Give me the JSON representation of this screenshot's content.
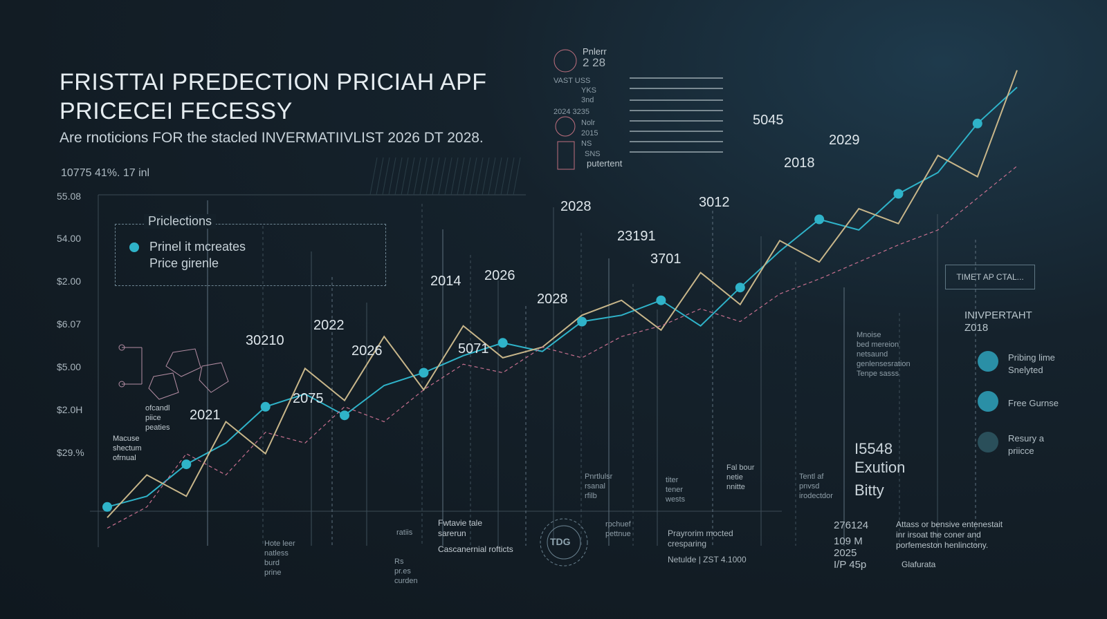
{
  "header": {
    "title_line1": "FRISTTAI PREDECTION PRICIAH APF",
    "title_line2": "PRICECEI FECESSY",
    "subtitle": "Are rnoticions FOR the stacled INVERMATIIVLIST 2026 DT 2028.",
    "stats": "10775  41%. 17 inl"
  },
  "colors": {
    "accent_cyan": "#2fb3c9",
    "accent_tan": "#c8b68a",
    "accent_pink": "#c8708f",
    "grid": "#4a5a64",
    "background": "#15222c"
  },
  "legend": {
    "title": "Priclections",
    "item1_line1": "Prinel it mcreates",
    "item1_line2": "Price girenle"
  },
  "top_legend": {
    "label1": "Pnlerr",
    "label2": "2 28",
    "row1": "VAST  USS",
    "row2": "YKS",
    "row3": "3nd",
    "row4": "2024  3235",
    "row5": "Nolr",
    "row6": "2015",
    "row7": "NS",
    "row8": "SNS",
    "footer": "putertent"
  },
  "sidebar": {
    "title_line1": "INIVPERTAHT",
    "title_line2": "Z018",
    "items": [
      {
        "line1": "Pribing lime",
        "line2": "Snelyted",
        "color": "#2a8fa6"
      },
      {
        "line1": "Free Gurnse",
        "line2": "",
        "color": "#2a8fa6"
      },
      {
        "line1": "Resury a",
        "line2": "priicce",
        "color": "#2a4f5a"
      }
    ],
    "button": "TIMET AP CTAL..."
  },
  "summary": {
    "line1": "I5548",
    "line2": "Exution",
    "line3": "Bitty"
  },
  "bottom": {
    "col1": "276124",
    "col2": "109 M",
    "col3": "2025",
    "col4": "I/P 45p",
    "note_line1": "Attass or bensive entenestait",
    "note_line2": "inr irsoat the coner and",
    "note_line3": "porfemeston henlinctony.",
    "note_tag": "Glafurata",
    "center_line1": "Prayrorim mocted",
    "center_line2": "cresparing",
    "center_line3": "Netulde  |  ZST 4.1000",
    "mid_line1": "rpchuef",
    "mid_line2": "pettnue",
    "legend_line1": "Fwtavie tale",
    "legend_line2": "sarerun",
    "legend_line3": "Cascanernial rofticts",
    "ratios": "ratiis",
    "emblem": "TDG"
  },
  "annotations": {
    "left_block": [
      "Macuse",
      "shectum",
      "ofrnual"
    ],
    "left_mid": [
      "ofcandl",
      "piice",
      "peaties"
    ],
    "low1": [
      "Hote  leer",
      "natless",
      "burd",
      "prine"
    ],
    "low2": [
      "Rs",
      "pr.es",
      "curden"
    ],
    "low3": [
      "Pnrtlulsr",
      "rsanal",
      "rfilb"
    ],
    "low4": [
      "titer",
      "tener",
      "wests"
    ],
    "low5": [
      "Fal bour",
      "netie",
      "nnitte"
    ],
    "low6": [
      "Tentl af",
      "pnvsd",
      "irodectdor"
    ],
    "mid_right": [
      "Mnoise",
      "bed mereion",
      "netsaund",
      "genlensesration",
      "Tenpe sasss"
    ]
  },
  "chart_data": {
    "type": "line",
    "title": "FRISTTAI PREDECTION PRICIAH APF PRICECEI FECESSY",
    "ylabel": "",
    "y_tick_labels": [
      "55.08",
      "54.00",
      "$2.00",
      "$6.07",
      "$5.00",
      "$2.0H",
      "$29.%"
    ],
    "year_labels": [
      "2021",
      "30210",
      "2075",
      "2022",
      "2026",
      "2014",
      "5071",
      "2026",
      "2028",
      "2028",
      "23191",
      "3701",
      "3012",
      "5045",
      "2018",
      "2029"
    ],
    "series": [
      {
        "color": "#2fb3c9",
        "values": [
          0.15,
          0.2,
          0.35,
          0.45,
          0.62,
          0.68,
          0.58,
          0.72,
          0.78,
          0.86,
          0.92,
          0.88,
          1.02,
          1.05,
          1.12,
          1.0,
          1.18,
          1.35,
          1.5,
          1.45,
          1.62,
          1.72,
          1.95,
          2.12
        ]
      },
      {
        "color": "#c8b68a",
        "values": [
          0.1,
          0.3,
          0.2,
          0.55,
          0.4,
          0.8,
          0.65,
          0.95,
          0.7,
          1.0,
          0.85,
          0.9,
          1.05,
          1.12,
          0.98,
          1.25,
          1.1,
          1.4,
          1.3,
          1.55,
          1.48,
          1.8,
          1.7,
          2.2
        ]
      },
      {
        "color": "#c8708f",
        "values": [
          0.05,
          0.15,
          0.4,
          0.3,
          0.5,
          0.45,
          0.62,
          0.55,
          0.7,
          0.82,
          0.78,
          0.9,
          0.85,
          0.95,
          1.0,
          1.08,
          1.02,
          1.15,
          1.22,
          1.3,
          1.38,
          1.45,
          1.6,
          1.75
        ]
      }
    ],
    "x_count": 24,
    "ylim": [
      0,
      2.4
    ],
    "grid": true
  }
}
